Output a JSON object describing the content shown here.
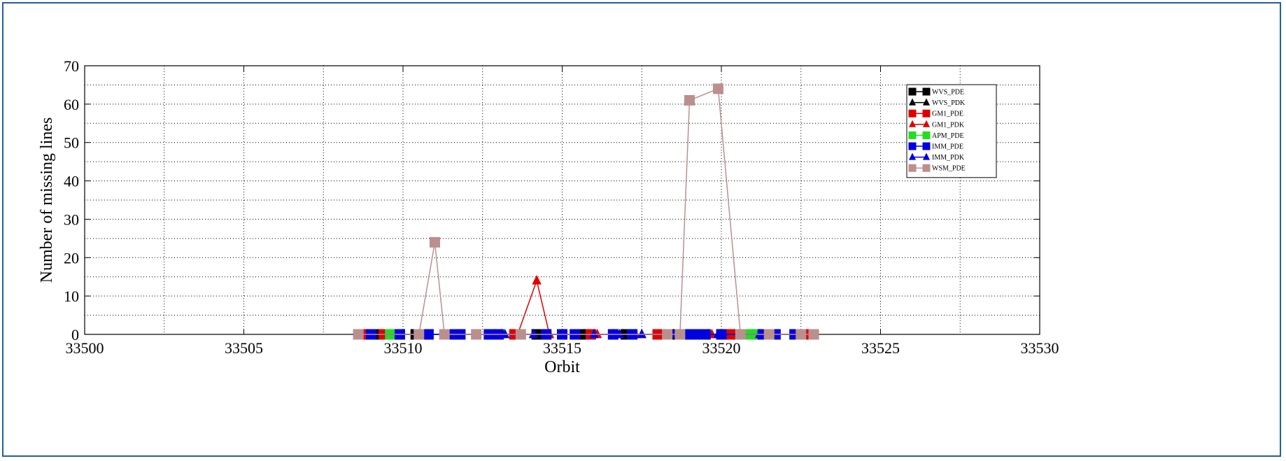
{
  "chart_data": {
    "type": "line",
    "xlabel": "Orbit",
    "ylabel": "Number of missing lines",
    "xlim": [
      33500,
      33530
    ],
    "ylim": [
      0,
      70
    ],
    "x_ticks": [
      33500,
      33505,
      33510,
      33515,
      33520,
      33525,
      33530
    ],
    "y_ticks": [
      0,
      10,
      20,
      30,
      40,
      50,
      60,
      70
    ],
    "grid": true,
    "legend_position": "top-right",
    "orbit_range": [
      33508.6,
      33522.9
    ],
    "series": [
      {
        "name": "WVS_PDE",
        "color": "#000000",
        "marker": "square",
        "x": [
          33508.7,
          33509.2,
          33510.4,
          33512.8,
          33514.2,
          33515.6,
          33517.0,
          33518.6,
          33520.8,
          33522.9
        ],
        "y": [
          0,
          0,
          0,
          0,
          0,
          0,
          0,
          0,
          0,
          0
        ]
      },
      {
        "name": "WVS_PDK",
        "color": "#000000",
        "marker": "triangle",
        "x": [
          33512.9,
          33513.1,
          33514.6,
          33515.7,
          33516.9,
          33518.2,
          33519.6,
          33521.0
        ],
        "y": [
          0,
          0,
          0,
          0,
          0,
          0,
          0,
          0
        ]
      },
      {
        "name": "GM1_PDE",
        "color": "#e00000",
        "marker": "square",
        "x": [
          33508.8,
          33509.4,
          33511.6,
          33513.5,
          33515.9,
          33518.0,
          33520.3,
          33522.8
        ],
        "y": [
          0,
          0,
          0,
          0,
          0,
          0,
          0,
          0
        ]
      },
      {
        "name": "GM1_PDK",
        "color": "#e00000",
        "marker": "triangle",
        "x": [
          33513.6,
          33514.2,
          33514.6,
          33516.1,
          33516.6,
          33517.3,
          33518.8,
          33519.7,
          33520.4
        ],
        "y": [
          0,
          14,
          0,
          0,
          0,
          0,
          0,
          0,
          0
        ]
      },
      {
        "name": "APM_PDE",
        "color": "#22dd22",
        "marker": "square",
        "x": [
          33509.6,
          33520.9,
          33521.0
        ],
        "y": [
          0,
          0,
          0
        ]
      },
      {
        "name": "IMM_PDE",
        "color": "#0000e0",
        "marker": "square",
        "x": [
          33508.6,
          33509.0,
          33509.9,
          33510.8,
          33511.5,
          33511.8,
          33512.7,
          33513.0,
          33514.5,
          33515.0,
          33515.4,
          33516.6,
          33517.2,
          33518.9,
          33519.2,
          33519.5,
          33520.0,
          33521.3,
          33521.7,
          33522.3
        ],
        "y": [
          0,
          0,
          0,
          0,
          0,
          0,
          0,
          0,
          0,
          0,
          0,
          0,
          0,
          0,
          0,
          0,
          0,
          0,
          0,
          0
        ]
      },
      {
        "name": "IMM_PDK",
        "color": "#0000e0",
        "marker": "triangle",
        "x": [
          33513.2,
          33514.1,
          33516.0,
          33516.8,
          33517.5,
          33518.5,
          33519.9,
          33521.2
        ],
        "y": [
          0,
          0,
          0,
          0,
          0,
          0,
          0,
          0
        ]
      },
      {
        "name": "WSM_PDE",
        "color": "#bc8f8f",
        "marker": "square",
        "x": [
          33508.6,
          33510.5,
          33511.0,
          33511.3,
          33512.3,
          33513.7,
          33518.3,
          33518.7,
          33519.0,
          33519.9,
          33520.6,
          33521.5,
          33522.5,
          33522.9
        ],
        "y": [
          0,
          0,
          24,
          0,
          0,
          0,
          0,
          0,
          61,
          64,
          0,
          0,
          0,
          0
        ]
      }
    ]
  }
}
